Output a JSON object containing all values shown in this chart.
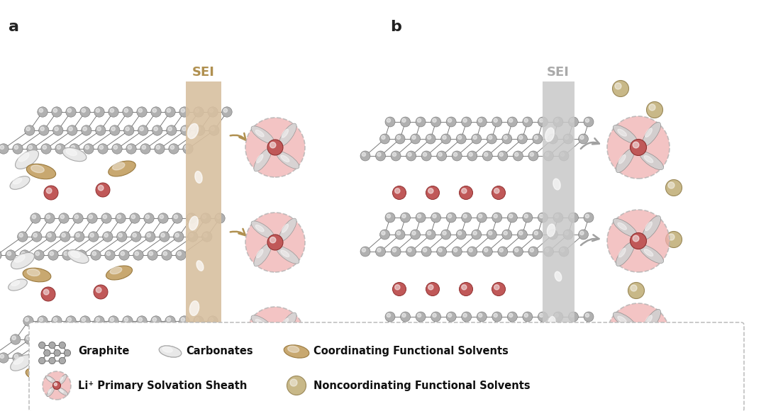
{
  "bg": "#ffffff",
  "gc": "#b0b0b0",
  "gec": "#707070",
  "li_c": "#c05858",
  "li_ec": "#903030",
  "carb_c": "#e8e8e8",
  "carb_ec": "#a8a8a8",
  "coord_c": "#c8a870",
  "coord_ec": "#9a7a40",
  "noncrd_c": "#c8b888",
  "noncrd_ec": "#9a8858",
  "solv_bg": "#f0b0b0",
  "solv_ec": "#b0b0b0",
  "sei_a_c": "#d8c0a0",
  "sei_a_ec": "#c0a880",
  "sei_b_c": "#c8c8c8",
  "sei_b_ec": "#a8a8a8",
  "arr_a": "#b09050",
  "arr_b": "#a0a0a0",
  "panel_a": "a",
  "panel_b": "b",
  "sei_a_txt": "SEI",
  "sei_b_txt": "SEI",
  "leg_txt1": "Graphite",
  "leg_txt2": "Carbonates",
  "leg_txt3": "Coordinating Functional Solvents",
  "leg_txt4": "Li⁺ Primary Solvation Sheath",
  "leg_txt5": "Noncoordinating Functional Solvents"
}
